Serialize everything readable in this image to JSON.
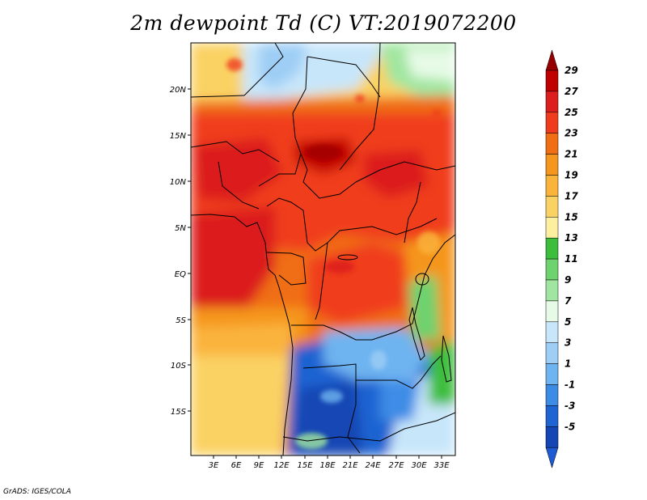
{
  "title": "2m dewpoint Td (C) VT:2019072200",
  "credit": "GrADS: IGES/COLA",
  "lat_labels": [
    "20N",
    "15N",
    "10N",
    "5N",
    "EQ",
    "5S",
    "10S",
    "15S"
  ],
  "lon_labels": [
    "3E",
    "6E",
    "9E",
    "12E",
    "15E",
    "18E",
    "21E",
    "24E",
    "27E",
    "30E",
    "33E"
  ],
  "colorbar": {
    "labels": [
      "29",
      "27",
      "25",
      "23",
      "21",
      "19",
      "17",
      "15",
      "13",
      "11",
      "9",
      "7",
      "5",
      "3",
      "1",
      "-1",
      "-3",
      "-5"
    ],
    "colors": [
      "#a00000",
      "#c00000",
      "#dc1e1e",
      "#f03c1e",
      "#f06e14",
      "#f5961e",
      "#fab43c",
      "#fad264",
      "#fcf0a0",
      "#3cbe3c",
      "#6ed26e",
      "#a0e6a0",
      "#e6fae6",
      "#c8e6fa",
      "#9ecef5",
      "#6eb4f0",
      "#3c8ce6",
      "#1e64d2",
      "#1446b4"
    ],
    "top_color": "#960000",
    "bottom_color": "#1e5ad2"
  }
}
